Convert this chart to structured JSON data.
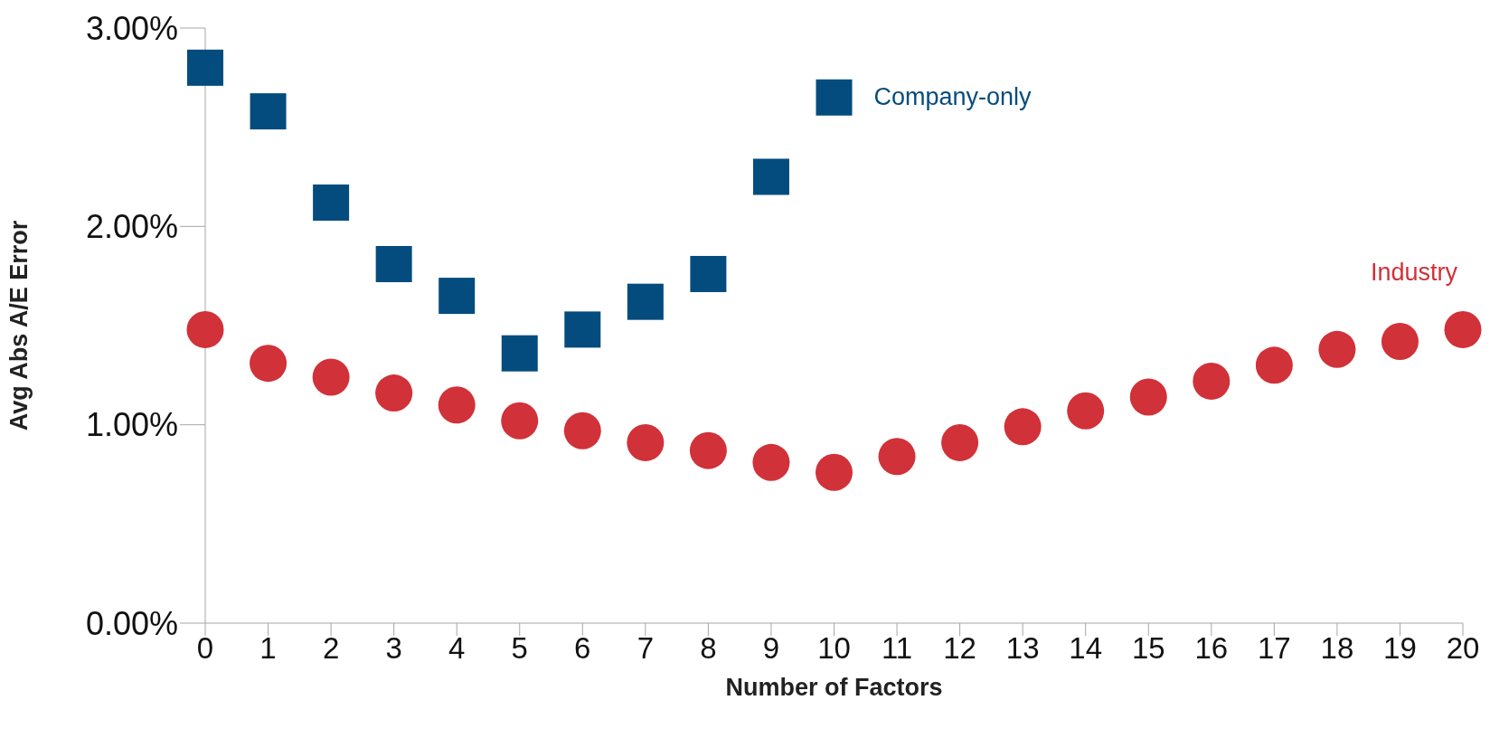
{
  "chart_data": {
    "type": "scatter",
    "xlabel": "Number of Factors",
    "ylabel": "Avg Abs A/E Error",
    "xlim": [
      0,
      20
    ],
    "xticks": [
      0,
      1,
      2,
      3,
      4,
      5,
      6,
      7,
      8,
      9,
      10,
      11,
      12,
      13,
      14,
      15,
      16,
      17,
      18,
      19,
      20
    ],
    "ylim": [
      0,
      3
    ],
    "yticks": [
      {
        "value": 0,
        "label": "0.00%"
      },
      {
        "value": 1,
        "label": "1.00%"
      },
      {
        "value": 2,
        "label": "2.00%"
      },
      {
        "value": 3,
        "label": "3.00%"
      }
    ],
    "grid": false,
    "legend": false,
    "series": [
      {
        "name": "Company-only",
        "color": "#054c7e",
        "marker": "square",
        "x": [
          0,
          1,
          2,
          3,
          4,
          5,
          6,
          7,
          8,
          9,
          10
        ],
        "values": [
          2.8,
          2.58,
          2.12,
          1.81,
          1.65,
          1.36,
          1.48,
          1.62,
          1.76,
          2.25,
          2.65
        ]
      },
      {
        "name": "Industry",
        "color": "#d13138",
        "marker": "circle",
        "x": [
          0,
          1,
          2,
          3,
          4,
          5,
          6,
          7,
          8,
          9,
          10,
          11,
          12,
          13,
          14,
          15,
          16,
          17,
          18,
          19,
          20
        ],
        "values": [
          1.48,
          1.31,
          1.24,
          1.16,
          1.1,
          1.02,
          0.97,
          0.91,
          0.87,
          0.81,
          0.76,
          0.84,
          0.91,
          0.99,
          1.07,
          1.14,
          1.22,
          1.3,
          1.38,
          1.42,
          1.48
        ]
      }
    ]
  }
}
